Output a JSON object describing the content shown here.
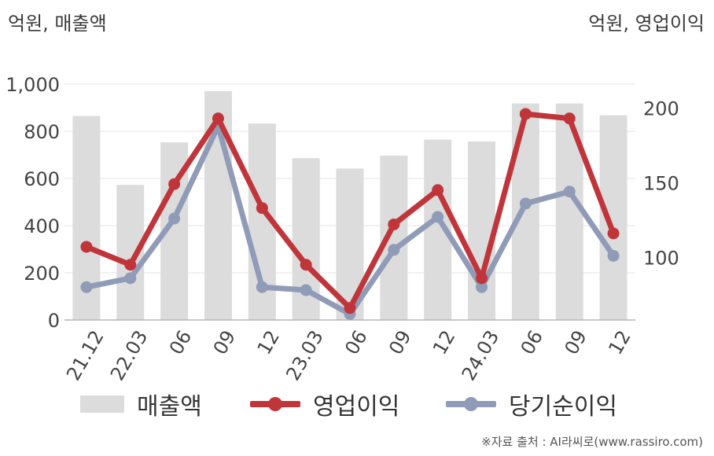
{
  "units": {
    "left": "억원, 매출액",
    "right": "억원, 영업이익"
  },
  "chart_data": {
    "type": "bar+line",
    "categories": [
      "21.12",
      "22.03",
      "06",
      "09",
      "12",
      "23.03",
      "06",
      "09",
      "12",
      "24.03",
      "06",
      "09",
      "12"
    ],
    "series": [
      {
        "name": "매출액",
        "type": "bar",
        "axis": "left",
        "color": "#dcdcdc",
        "values": [
          865,
          573,
          753,
          970,
          833,
          686,
          642,
          697,
          765,
          757,
          918,
          918,
          868
        ]
      },
      {
        "name": "영업이익",
        "type": "line",
        "axis": "right",
        "color": "#c0353a",
        "values": [
          107,
          95,
          149,
          193,
          133,
          95,
          66,
          122,
          145,
          86,
          196,
          193,
          116
        ]
      },
      {
        "name": "당기순이익",
        "type": "line",
        "axis": "right",
        "color": "#909bb7",
        "values": [
          80,
          86,
          126,
          188,
          80,
          78,
          62,
          105,
          127,
          80,
          136,
          144,
          101
        ]
      }
    ],
    "left_axis": {
      "ylim": [
        0,
        1000
      ],
      "ticks": [
        0,
        200,
        400,
        600,
        800,
        1000
      ],
      "tick_labels": [
        "0",
        "200",
        "400",
        "600",
        "800",
        "1,000"
      ]
    },
    "right_axis": {
      "ylim": [
        58,
        216
      ],
      "ticks": [
        100,
        150,
        200
      ],
      "tick_labels": [
        "100",
        "150",
        "200"
      ]
    },
    "grid": true,
    "legend_position": "bottom"
  },
  "legend": [
    {
      "label": "매출액"
    },
    {
      "label": "영업이익"
    },
    {
      "label": "당기순이익"
    }
  ],
  "source": "※자료 출처 : AI라씨로(www.rassiro.com)"
}
